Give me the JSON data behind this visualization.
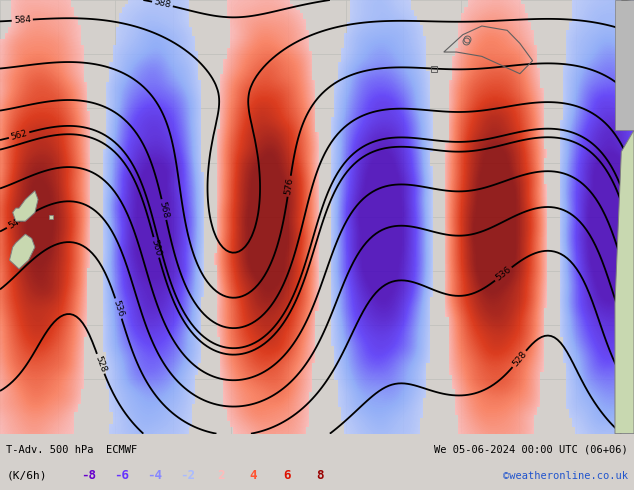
{
  "title_left": "T-Adv. 500 hPa  ECMWF",
  "title_right": "We 05-06-2024 00:00 UTC (06+06)",
  "colorbar_label": "(K/6h)",
  "colorbar_values": [
    -8,
    -6,
    -4,
    -2,
    2,
    4,
    6,
    8
  ],
  "colorbar_colors_neg": [
    "#6600cc",
    "#6633ff",
    "#8888ff",
    "#aabbff"
  ],
  "colorbar_colors_pos": [
    "#ffbbbb",
    "#ff5533",
    "#dd1100",
    "#990000"
  ],
  "watermark": "©weatheronline.co.uk",
  "bg_color": "#d4d0cc",
  "map_bg": "#e8e8e4",
  "grid_color": "#c0c0bc",
  "land_color": "#c8d8b0",
  "land_edge": "#808080",
  "contour_color": "#000000",
  "figsize": [
    6.34,
    4.9
  ],
  "dpi": 100
}
